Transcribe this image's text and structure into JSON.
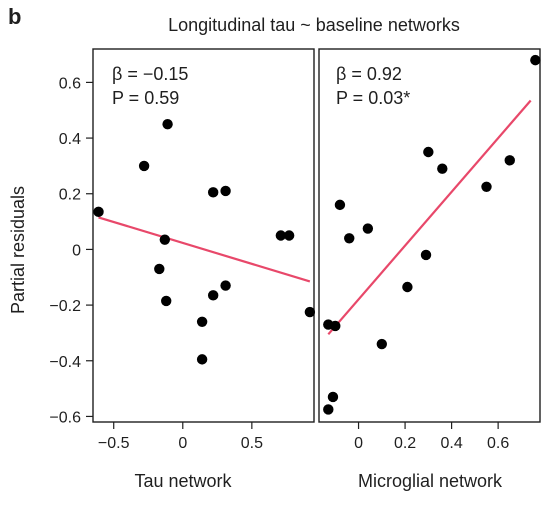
{
  "figure": {
    "panel_letter": "b",
    "title": "Longitudinal tau ~ baseline networks",
    "ylabel": "Partial residuals"
  },
  "chart_data": [
    {
      "type": "scatter",
      "xlabel": "Tau network",
      "ylabel": "Partial residuals",
      "xlim": [
        -0.65,
        0.95
      ],
      "ylim": [
        -0.62,
        0.72
      ],
      "xticks": [
        -0.5,
        0,
        0.5
      ],
      "xtick_labels": [
        "−0.5",
        "0",
        "0.5"
      ],
      "yticks": [
        -0.6,
        -0.4,
        -0.2,
        0,
        0.2,
        0.4,
        0.6
      ],
      "ytick_labels": [
        "−0.6",
        "−0.4",
        "−0.2",
        "0",
        "0.2",
        "0.4",
        "0.6"
      ],
      "annotation": {
        "beta": "β = −0.15",
        "p": "P = 0.59"
      },
      "points": {
        "x": [
          -0.61,
          -0.28,
          -0.11,
          -0.13,
          -0.17,
          -0.12,
          0.22,
          0.31,
          0.22,
          0.31,
          0.14,
          0.14,
          0.71,
          0.77,
          0.92
        ],
        "y": [
          0.135,
          0.3,
          0.45,
          0.035,
          -0.07,
          -0.185,
          0.205,
          0.21,
          -0.165,
          -0.13,
          -0.26,
          -0.395,
          0.05,
          0.05,
          -0.225
        ]
      },
      "fit_line": {
        "x": [
          -0.61,
          0.92
        ],
        "y": [
          0.115,
          -0.115
        ],
        "color": "#e8486a"
      },
      "point_color": "#000000"
    },
    {
      "type": "scatter",
      "xlabel": "Microglial network",
      "ylabel": "",
      "xlim": [
        -0.17,
        0.78
      ],
      "ylim": [
        -0.62,
        0.72
      ],
      "xticks": [
        0,
        0.2,
        0.4,
        0.6
      ],
      "xtick_labels": [
        "0",
        "0.2",
        "0.4",
        "0.6"
      ],
      "yticks": [],
      "ytick_labels": [],
      "annotation": {
        "beta": "β = 0.92",
        "p": "P = 0.03*"
      },
      "points": {
        "x": [
          -0.11,
          -0.13,
          -0.1,
          -0.13,
          -0.08,
          -0.04,
          0.04,
          0.1,
          0.21,
          0.29,
          0.3,
          0.36,
          0.55,
          0.65,
          0.76
        ],
        "y": [
          -0.53,
          -0.27,
          -0.275,
          -0.575,
          0.16,
          0.04,
          0.075,
          -0.34,
          -0.135,
          -0.02,
          0.35,
          0.29,
          0.225,
          0.32,
          0.68
        ]
      },
      "fit_line": {
        "x": [
          -0.13,
          0.74
        ],
        "y": [
          -0.305,
          0.535
        ],
        "color": "#e8486a"
      },
      "point_color": "#000000"
    }
  ]
}
